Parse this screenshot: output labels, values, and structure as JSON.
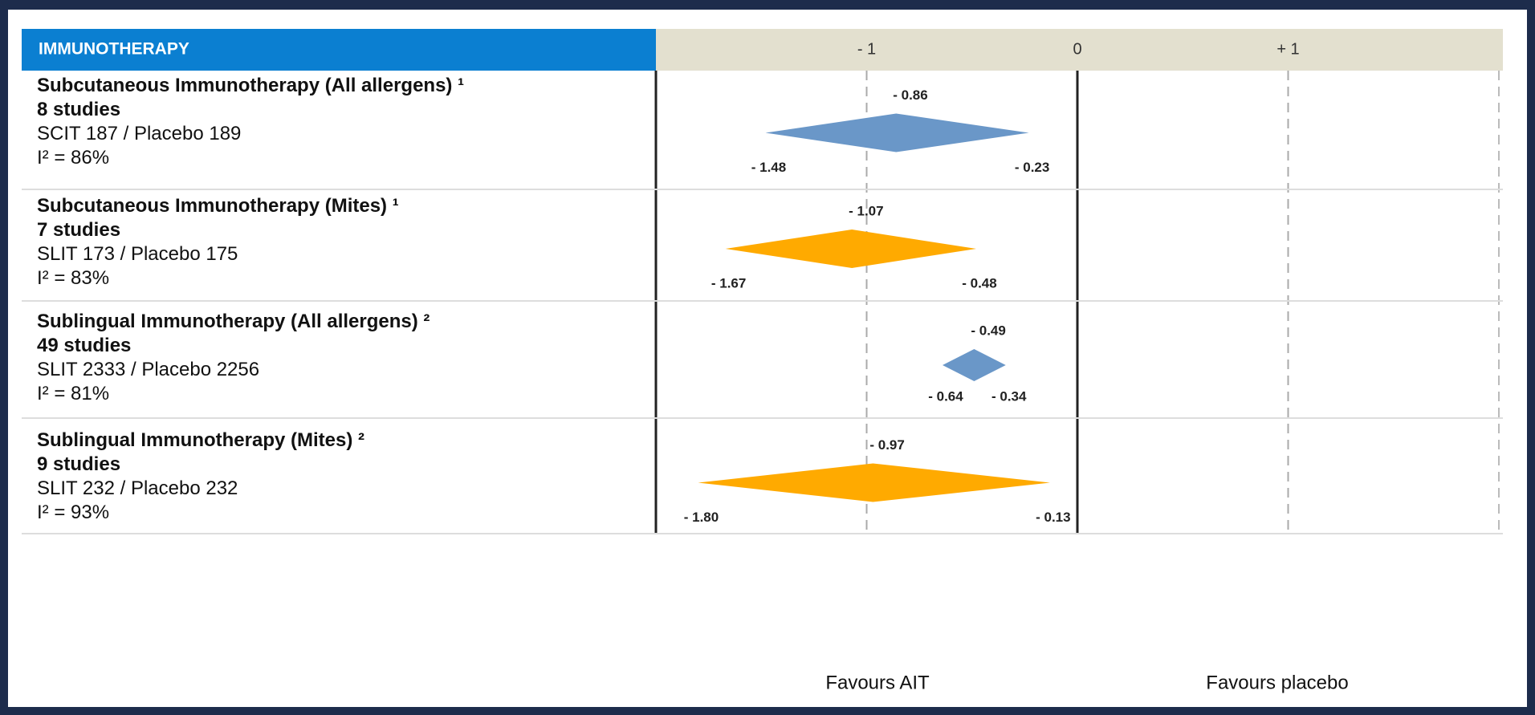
{
  "chart_data": {
    "type": "forest",
    "header": "IMMUNOTHERAPY",
    "xlim": [
      -2,
      2
    ],
    "xticks": [
      {
        "value": -1,
        "label": "- 1"
      },
      0,
      {
        "value": 1,
        "label": "+ 1"
      }
    ],
    "rows": [
      {
        "label": "Subcutaneous Immunotherapy (All allergens) ¹",
        "studies": "8 studies",
        "participants": "SCIT 187 / Placebo 189",
        "heterogeneity": "I² = 86%",
        "color": "#6a97c8",
        "estimate": -0.86,
        "lower": -1.48,
        "upper": -0.23,
        "value_labels": {
          "estimate": "- 0.86",
          "lower": "- 1.48",
          "upper": "- 0.23"
        }
      },
      {
        "label": "Subcutaneous Immunotherapy (Mites) ¹",
        "studies": "7 studies",
        "participants": "SLIT 173 / Placebo 175",
        "heterogeneity": "I² = 83%",
        "color": "#ffaa00",
        "estimate": -1.07,
        "lower": -1.67,
        "upper": -0.48,
        "value_labels": {
          "estimate": "- 1.07",
          "lower": "- 1.67",
          "upper": "- 0.48"
        }
      },
      {
        "label": "Sublingual Immunotherapy (All allergens) ²",
        "studies": "49 studies",
        "participants": "SLIT 2333 / Placebo 2256",
        "heterogeneity": "I² = 81%",
        "color": "#6a97c8",
        "estimate": -0.49,
        "lower": -0.64,
        "upper": -0.34,
        "value_labels": {
          "estimate": "- 0.49",
          "lower": "- 0.64",
          "upper": "- 0.34"
        }
      },
      {
        "label": "Sublingual Immunotherapy (Mites) ²",
        "studies": "9 studies",
        "participants": "SLIT 232 / Placebo 232",
        "heterogeneity": "I² = 93%",
        "color": "#ffaa00",
        "estimate": -0.97,
        "lower": -1.8,
        "upper": -0.13,
        "value_labels": {
          "estimate": "- 0.97",
          "lower": "- 1.80",
          "upper": "- 0.13"
        }
      }
    ],
    "favours_left": "Favours AIT",
    "favours_right": "Favours placebo"
  }
}
